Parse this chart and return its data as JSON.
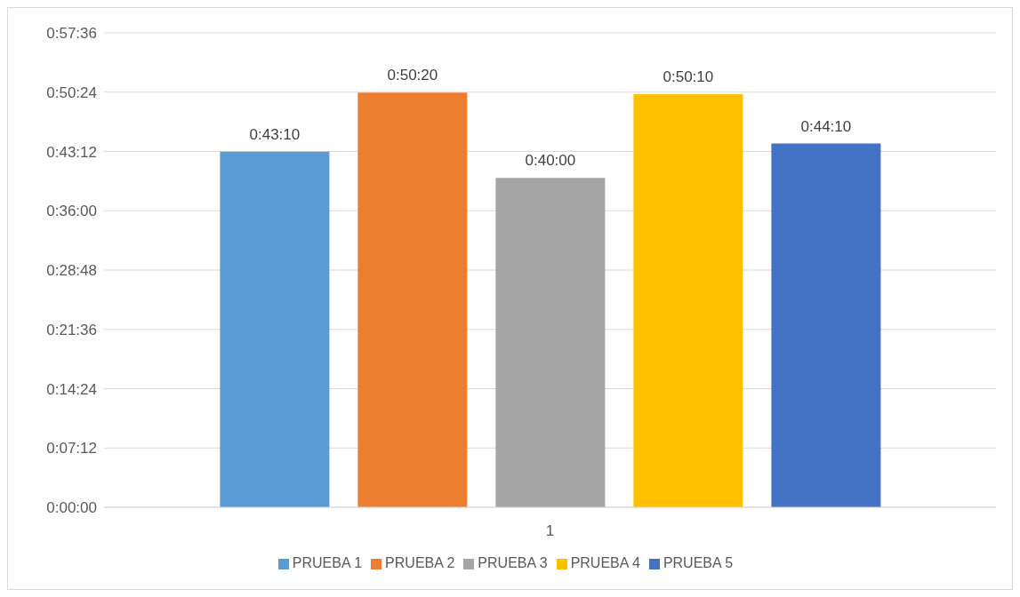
{
  "chart_data": {
    "type": "bar",
    "categories": [
      "1"
    ],
    "series": [
      {
        "name": "PRUEBA 1",
        "color": "#5b9bd5",
        "values": [
          2590
        ],
        "value_labels": [
          "0:43:10"
        ]
      },
      {
        "name": "PRUEBA 2",
        "color": "#ed7d31",
        "values": [
          3020
        ],
        "value_labels": [
          "0:50:20"
        ]
      },
      {
        "name": "PRUEBA 3",
        "color": "#a5a5a5",
        "values": [
          2400
        ],
        "value_labels": [
          "0:40:00"
        ]
      },
      {
        "name": "PRUEBA 4",
        "color": "#ffc000",
        "values": [
          3010
        ],
        "value_labels": [
          "0:50:10"
        ]
      },
      {
        "name": "PRUEBA 5",
        "color": "#4472c4",
        "values": [
          2650
        ],
        "value_labels": [
          "0:44:10"
        ]
      }
    ],
    "ylim": [
      0,
      3456
    ],
    "yticks": [
      {
        "value": 0,
        "label": "0:00:00"
      },
      {
        "value": 432,
        "label": "0:07:12"
      },
      {
        "value": 864,
        "label": "0:14:24"
      },
      {
        "value": 1296,
        "label": "0:21:36"
      },
      {
        "value": 1728,
        "label": "0:28:48"
      },
      {
        "value": 2160,
        "label": "0:36:00"
      },
      {
        "value": 2592,
        "label": "0:43:12"
      },
      {
        "value": 3024,
        "label": "0:50:24"
      },
      {
        "value": 3456,
        "label": "0:57:36"
      }
    ],
    "grid": "y",
    "legend": "bottom"
  }
}
